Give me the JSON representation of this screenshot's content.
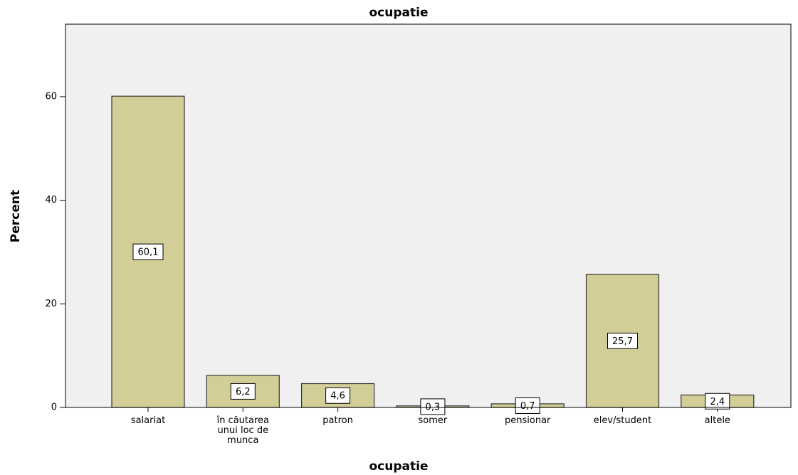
{
  "chart_data": {
    "type": "bar",
    "title": "ocupatie",
    "x_label": "ocupatie",
    "y_label": "Percent",
    "categories": [
      "salariat",
      "în căutarea unui loc de munca",
      "patron",
      "somer",
      "pensionar",
      "elev/student",
      "altele"
    ],
    "values": [
      60.1,
      6.2,
      4.6,
      0.3,
      0.7,
      25.7,
      2.4
    ],
    "value_labels": [
      "60,1",
      "6,2",
      "4,6",
      "0,3",
      "0,7",
      "25,7",
      "2,4"
    ],
    "color": "#d3ce97",
    "ylim": [
      0,
      74
    ],
    "yticks": [
      0,
      20,
      40,
      60
    ],
    "grid": false
  }
}
